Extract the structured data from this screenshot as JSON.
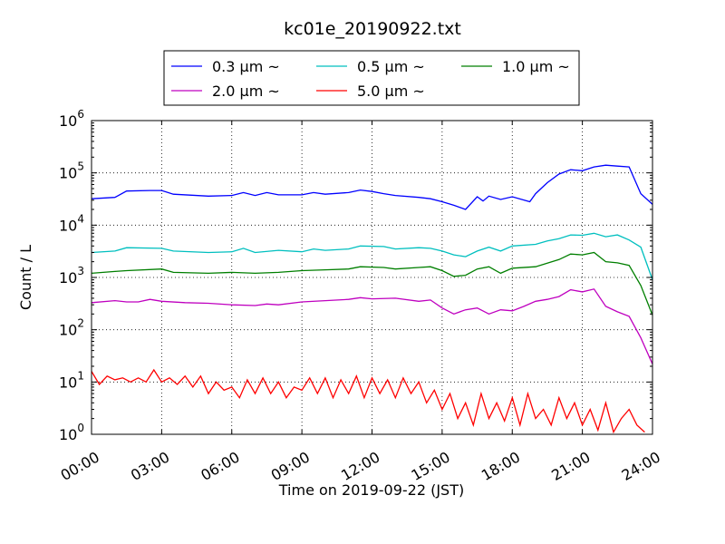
{
  "chart_data": {
    "type": "line",
    "title": "kc01e_20190922.txt",
    "xlabel": "Time on 2019-09-22 (JST)",
    "ylabel": "Count / L",
    "yscale": "log",
    "ylim": [
      1,
      1000000
    ],
    "xlim": [
      "00:00",
      "24:00"
    ],
    "grid": true,
    "legend_position": "top-center",
    "x_ticks": [
      "00:00",
      "03:00",
      "06:00",
      "09:00",
      "12:00",
      "15:00",
      "18:00",
      "21:00",
      "24:00"
    ],
    "y_ticks": [
      {
        "base": "10",
        "exp": "0"
      },
      {
        "base": "10",
        "exp": "1"
      },
      {
        "base": "10",
        "exp": "2"
      },
      {
        "base": "10",
        "exp": "3"
      },
      {
        "base": "10",
        "exp": "4"
      },
      {
        "base": "10",
        "exp": "5"
      },
      {
        "base": "10",
        "exp": "6"
      }
    ],
    "series": [
      {
        "name": "0.3 μm ~",
        "color": "#0000ff",
        "points": [
          [
            "00:00",
            32000
          ],
          [
            "01:00",
            34000
          ],
          [
            "01:30",
            45000
          ],
          [
            "02:30",
            46000
          ],
          [
            "03:00",
            46000
          ],
          [
            "03:30",
            39000
          ],
          [
            "05:00",
            36000
          ],
          [
            "06:00",
            37000
          ],
          [
            "06:30",
            42000
          ],
          [
            "07:00",
            37000
          ],
          [
            "07:30",
            42000
          ],
          [
            "08:00",
            38000
          ],
          [
            "09:00",
            38000
          ],
          [
            "09:30",
            42000
          ],
          [
            "10:00",
            39000
          ],
          [
            "11:00",
            42000
          ],
          [
            "11:30",
            47000
          ],
          [
            "12:00",
            44000
          ],
          [
            "12:30",
            40000
          ],
          [
            "13:00",
            37000
          ],
          [
            "14:00",
            34000
          ],
          [
            "14:30",
            32000
          ],
          [
            "15:00",
            28000
          ],
          [
            "15:30",
            24000
          ],
          [
            "16:00",
            20000
          ],
          [
            "16:30",
            35000
          ],
          [
            "16:45",
            29000
          ],
          [
            "17:00",
            36000
          ],
          [
            "17:30",
            31000
          ],
          [
            "18:00",
            35000
          ],
          [
            "18:45",
            28000
          ],
          [
            "19:00",
            40000
          ],
          [
            "19:30",
            65000
          ],
          [
            "20:00",
            95000
          ],
          [
            "20:30",
            115000
          ],
          [
            "21:00",
            110000
          ],
          [
            "21:30",
            130000
          ],
          [
            "22:00",
            140000
          ],
          [
            "22:30",
            135000
          ],
          [
            "23:00",
            130000
          ],
          [
            "23:30",
            40000
          ],
          [
            "24:00",
            25000
          ]
        ]
      },
      {
        "name": "0.5 μm ~",
        "color": "#00bfbf",
        "points": [
          [
            "00:00",
            3000
          ],
          [
            "01:00",
            3200
          ],
          [
            "01:30",
            3700
          ],
          [
            "03:00",
            3600
          ],
          [
            "03:30",
            3200
          ],
          [
            "05:00",
            3000
          ],
          [
            "06:00",
            3100
          ],
          [
            "06:30",
            3600
          ],
          [
            "07:00",
            3000
          ],
          [
            "08:00",
            3300
          ],
          [
            "09:00",
            3100
          ],
          [
            "09:30",
            3500
          ],
          [
            "10:00",
            3300
          ],
          [
            "11:00",
            3500
          ],
          [
            "11:30",
            4000
          ],
          [
            "12:30",
            3900
          ],
          [
            "13:00",
            3500
          ],
          [
            "14:00",
            3700
          ],
          [
            "14:30",
            3600
          ],
          [
            "15:00",
            3200
          ],
          [
            "15:30",
            2700
          ],
          [
            "16:00",
            2500
          ],
          [
            "16:30",
            3200
          ],
          [
            "17:00",
            3800
          ],
          [
            "17:30",
            3200
          ],
          [
            "18:00",
            4000
          ],
          [
            "19:00",
            4300
          ],
          [
            "19:30",
            5000
          ],
          [
            "20:00",
            5500
          ],
          [
            "20:30",
            6500
          ],
          [
            "21:00",
            6400
          ],
          [
            "21:30",
            7000
          ],
          [
            "22:00",
            6000
          ],
          [
            "22:30",
            6500
          ],
          [
            "23:00",
            5200
          ],
          [
            "23:30",
            3800
          ],
          [
            "24:00",
            900
          ]
        ]
      },
      {
        "name": "1.0 μm ~",
        "color": "#007f00",
        "points": [
          [
            "00:00",
            1200
          ],
          [
            "01:00",
            1300
          ],
          [
            "01:30",
            1350
          ],
          [
            "03:00",
            1450
          ],
          [
            "03:30",
            1250
          ],
          [
            "05:00",
            1200
          ],
          [
            "06:00",
            1250
          ],
          [
            "07:00",
            1200
          ],
          [
            "08:00",
            1250
          ],
          [
            "09:00",
            1350
          ],
          [
            "10:00",
            1400
          ],
          [
            "11:00",
            1450
          ],
          [
            "11:30",
            1600
          ],
          [
            "12:30",
            1550
          ],
          [
            "13:00",
            1450
          ],
          [
            "14:00",
            1550
          ],
          [
            "14:30",
            1600
          ],
          [
            "15:00",
            1350
          ],
          [
            "15:30",
            1050
          ],
          [
            "16:00",
            1100
          ],
          [
            "16:30",
            1450
          ],
          [
            "17:00",
            1600
          ],
          [
            "17:30",
            1200
          ],
          [
            "18:00",
            1500
          ],
          [
            "19:00",
            1600
          ],
          [
            "20:00",
            2200
          ],
          [
            "20:30",
            2800
          ],
          [
            "21:00",
            2700
          ],
          [
            "21:30",
            3000
          ],
          [
            "22:00",
            2000
          ],
          [
            "22:30",
            1900
          ],
          [
            "23:00",
            1700
          ],
          [
            "23:30",
            700
          ],
          [
            "24:00",
            190
          ]
        ]
      },
      {
        "name": "2.0 μm ~",
        "color": "#bf00bf",
        "points": [
          [
            "00:00",
            330
          ],
          [
            "01:00",
            360
          ],
          [
            "01:30",
            340
          ],
          [
            "02:00",
            340
          ],
          [
            "02:30",
            380
          ],
          [
            "03:00",
            350
          ],
          [
            "04:00",
            330
          ],
          [
            "05:00",
            320
          ],
          [
            "06:00",
            300
          ],
          [
            "07:00",
            290
          ],
          [
            "07:30",
            310
          ],
          [
            "08:00",
            300
          ],
          [
            "09:00",
            340
          ],
          [
            "10:00",
            360
          ],
          [
            "11:00",
            380
          ],
          [
            "11:30",
            410
          ],
          [
            "12:00",
            390
          ],
          [
            "13:00",
            400
          ],
          [
            "14:00",
            350
          ],
          [
            "14:30",
            370
          ],
          [
            "15:00",
            260
          ],
          [
            "15:30",
            200
          ],
          [
            "16:00",
            240
          ],
          [
            "16:30",
            260
          ],
          [
            "17:00",
            200
          ],
          [
            "17:30",
            240
          ],
          [
            "18:00",
            230
          ],
          [
            "18:30",
            280
          ],
          [
            "19:00",
            350
          ],
          [
            "19:30",
            380
          ],
          [
            "20:00",
            430
          ],
          [
            "20:30",
            580
          ],
          [
            "21:00",
            530
          ],
          [
            "21:30",
            600
          ],
          [
            "22:00",
            280
          ],
          [
            "22:30",
            220
          ],
          [
            "23:00",
            180
          ],
          [
            "23:30",
            70
          ],
          [
            "24:00",
            22
          ]
        ]
      },
      {
        "name": "5.0 μm ~",
        "color": "#ff0000",
        "points": [
          [
            "00:00",
            16
          ],
          [
            "00:20",
            9
          ],
          [
            "00:40",
            13
          ],
          [
            "01:00",
            11
          ],
          [
            "01:20",
            12
          ],
          [
            "01:40",
            10
          ],
          [
            "02:00",
            12
          ],
          [
            "02:20",
            10
          ],
          [
            "02:40",
            17
          ],
          [
            "03:00",
            10
          ],
          [
            "03:20",
            12
          ],
          [
            "03:40",
            9
          ],
          [
            "04:00",
            13
          ],
          [
            "04:20",
            8
          ],
          [
            "04:40",
            13
          ],
          [
            "05:00",
            6
          ],
          [
            "05:20",
            10
          ],
          [
            "05:40",
            7
          ],
          [
            "06:00",
            8
          ],
          [
            "06:20",
            5
          ],
          [
            "06:40",
            11
          ],
          [
            "07:00",
            6
          ],
          [
            "07:20",
            12
          ],
          [
            "07:40",
            6
          ],
          [
            "08:00",
            10
          ],
          [
            "08:20",
            5
          ],
          [
            "08:40",
            8
          ],
          [
            "09:00",
            7
          ],
          [
            "09:20",
            12
          ],
          [
            "09:40",
            6
          ],
          [
            "10:00",
            12
          ],
          [
            "10:20",
            5
          ],
          [
            "10:40",
            11
          ],
          [
            "11:00",
            6
          ],
          [
            "11:20",
            13
          ],
          [
            "11:40",
            5
          ],
          [
            "12:00",
            12
          ],
          [
            "12:20",
            6
          ],
          [
            "12:40",
            11
          ],
          [
            "13:00",
            5
          ],
          [
            "13:20",
            12
          ],
          [
            "13:40",
            6
          ],
          [
            "14:00",
            10
          ],
          [
            "14:20",
            4
          ],
          [
            "14:40",
            7
          ],
          [
            "15:00",
            3
          ],
          [
            "15:20",
            6
          ],
          [
            "15:40",
            2
          ],
          [
            "16:00",
            4
          ],
          [
            "16:20",
            1.5
          ],
          [
            "16:40",
            6
          ],
          [
            "17:00",
            2
          ],
          [
            "17:20",
            4
          ],
          [
            "17:40",
            1.8
          ],
          [
            "18:00",
            5
          ],
          [
            "18:20",
            1.5
          ],
          [
            "18:40",
            6
          ],
          [
            "19:00",
            2
          ],
          [
            "19:20",
            3
          ],
          [
            "19:40",
            1.5
          ],
          [
            "20:00",
            5
          ],
          [
            "20:20",
            2
          ],
          [
            "20:40",
            4
          ],
          [
            "21:00",
            1.5
          ],
          [
            "21:20",
            3
          ],
          [
            "21:40",
            1.2
          ],
          [
            "22:00",
            4
          ],
          [
            "22:20",
            1.1
          ],
          [
            "22:40",
            2
          ],
          [
            "23:00",
            3
          ],
          [
            "23:20",
            1.5
          ],
          [
            "23:40",
            1.1
          ]
        ]
      }
    ]
  }
}
